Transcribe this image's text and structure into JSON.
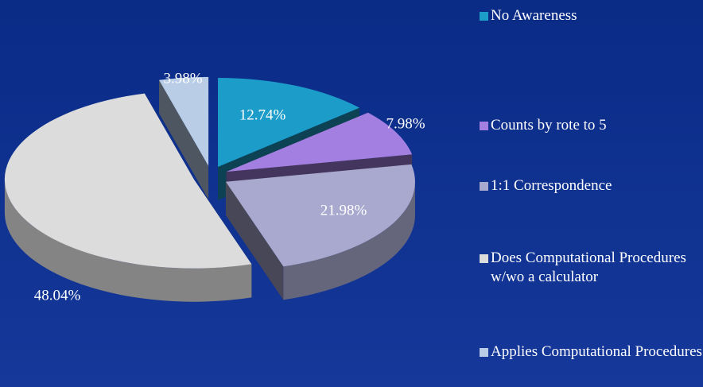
{
  "chart_data": {
    "type": "pie",
    "categories": [
      "No Awareness",
      "Counts by rote to 5",
      "1:1 Correspondence",
      "Does Computational Procedures w/wo a calculator",
      "Applies Computational Procedures"
    ],
    "values": [
      12.74,
      7.98,
      21.98,
      48.04,
      3.98
    ],
    "value_labels": [
      "12.74%",
      "7.98%",
      "21.98%",
      "48.04%",
      "3.98%"
    ],
    "colors": [
      "#1c9cc8",
      "#a27fe0",
      "#a9a9cf",
      "#dcdcdc",
      "#b9cde6"
    ],
    "legend": "right"
  }
}
